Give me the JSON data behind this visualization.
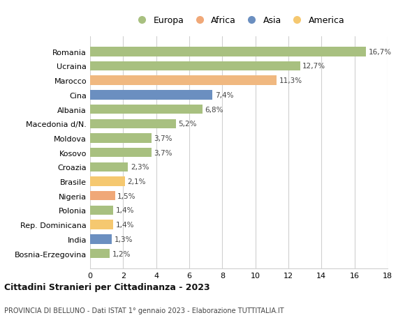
{
  "countries": [
    "Bosnia-Erzegovina",
    "India",
    "Rep. Dominicana",
    "Polonia",
    "Nigeria",
    "Brasile",
    "Croazia",
    "Kosovo",
    "Moldova",
    "Macedonia d/N.",
    "Albania",
    "Cina",
    "Marocco",
    "Ucraina",
    "Romania"
  ],
  "values": [
    1.2,
    1.3,
    1.4,
    1.4,
    1.5,
    2.1,
    2.3,
    3.7,
    3.7,
    5.2,
    6.8,
    7.4,
    11.3,
    12.7,
    16.7
  ],
  "labels": [
    "1,2%",
    "1,3%",
    "1,4%",
    "1,4%",
    "1,5%",
    "2,1%",
    "2,3%",
    "3,7%",
    "3,7%",
    "5,2%",
    "6,8%",
    "7,4%",
    "11,3%",
    "12,7%",
    "16,7%"
  ],
  "colors": [
    "#a8c080",
    "#6b8fc0",
    "#f5c870",
    "#a8c080",
    "#f0a878",
    "#f5c870",
    "#a8c080",
    "#a8c080",
    "#a8c080",
    "#a8c080",
    "#a8c080",
    "#6b8fc0",
    "#f0b880",
    "#a8c080",
    "#a8c080"
  ],
  "legend": [
    {
      "label": "Europa",
      "color": "#a8c080"
    },
    {
      "label": "Africa",
      "color": "#f0a878"
    },
    {
      "label": "Asia",
      "color": "#6b8fc0"
    },
    {
      "label": "America",
      "color": "#f5c870"
    }
  ],
  "title": "Cittadini Stranieri per Cittadinanza - 2023",
  "subtitle": "PROVINCIA DI BELLUNO - Dati ISTAT 1° gennaio 2023 - Elaborazione TUTTITALIA.IT",
  "xlim": [
    0,
    18
  ],
  "xticks": [
    0,
    2,
    4,
    6,
    8,
    10,
    12,
    14,
    16,
    18
  ],
  "grid_color": "#d0d0d0",
  "bar_height": 0.65,
  "bg_color": "#ffffff"
}
